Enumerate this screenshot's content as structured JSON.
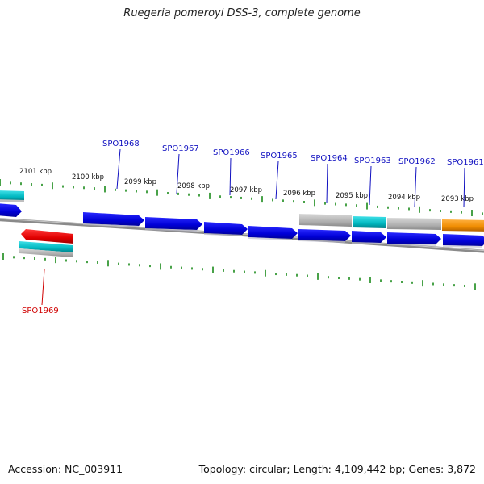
{
  "title": "Ruegeria pomeroyi DSS-3, complete genome",
  "footer": {
    "accession": "Accession: NC_003911",
    "summary": "Topology: circular; Length: 4,109,442 bp; Genes: 3,872"
  },
  "colors": {
    "gene_forward": "#0000e0",
    "gene_highlight": "#e00000",
    "gene_teal": "#00b0b8",
    "gene_gray": "#b0b0b0",
    "gene_orange": "#f08c00",
    "tick": "#1a8a1a",
    "backbone": "#888888",
    "label_blue": "#1010c0",
    "label_red": "#d00000"
  },
  "kbp_labels": [
    "2101 kbp",
    "2100 kbp",
    "2099 kbp",
    "2098 kbp",
    "2097 kbp",
    "2096 kbp",
    "2095 kbp",
    "2094 kbp",
    "2093 kbp"
  ],
  "gene_labels": [
    "SPO1968",
    "SPO1967",
    "SPO1966",
    "SPO1965",
    "SPO1964",
    "SPO1963",
    "SPO1962",
    "SPO1961",
    "SPO1969"
  ]
}
